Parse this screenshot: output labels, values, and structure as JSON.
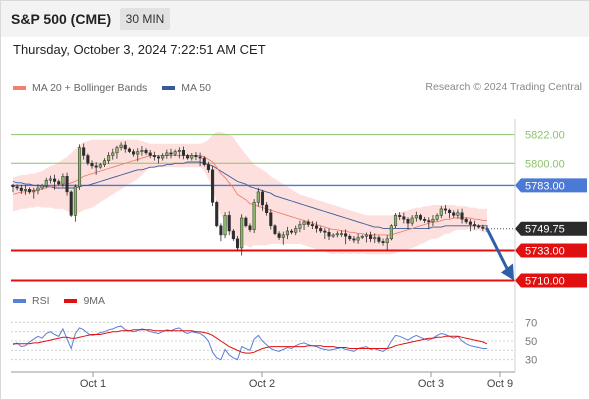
{
  "header": {
    "title": "S&P 500 (CME)",
    "timeframe": "30 MIN"
  },
  "timestamp": "Thursday, October 3, 2024 7:22:51 AM CET",
  "legend": {
    "ma20": "MA 20 + Bollinger Bands",
    "ma50": "MA 50",
    "rsi": "RSI",
    "rsi_ma": "9MA"
  },
  "credit": "Research © 2024 Trading Central",
  "colors": {
    "bollinger_fill": "#fcd5d2",
    "ma20": "#f08070",
    "ma50": "#3b5998",
    "candle": "#2d2d2d",
    "resistance": "#8dc26b",
    "pivot": "#4a79d6",
    "support": "#e01010",
    "rsi": "#5a7fd6",
    "rsi_ma": "#e01010",
    "arrow": "#2e5fa8"
  },
  "chart_data": [
    {
      "type": "candlestick",
      "title": "S&P 500 (CME)",
      "timeframe": "30 MIN",
      "x_ticks": [
        "Oct 1",
        "Oct 2",
        "Oct 3",
        "Oct 9"
      ],
      "ylim": [
        5705,
        5834
      ],
      "levels": [
        {
          "label": "5822.00",
          "value": 5822.0,
          "kind": "resistance"
        },
        {
          "label": "5800.00",
          "value": 5800.0,
          "kind": "resistance"
        },
        {
          "label": "5783.00",
          "value": 5783.0,
          "kind": "pivot"
        },
        {
          "label": "5749.75",
          "value": 5749.75,
          "kind": "last"
        },
        {
          "label": "5733.00",
          "value": 5733.0,
          "kind": "support"
        },
        {
          "label": "5710.00",
          "value": 5710.0,
          "kind": "support"
        }
      ],
      "close": [
        5782,
        5781,
        5779,
        5780,
        5778,
        5779,
        5781,
        5783,
        5787,
        5788,
        5786,
        5784,
        5790,
        5778,
        5760,
        5782,
        5812,
        5806,
        5800,
        5798,
        5797,
        5799,
        5802,
        5806,
        5808,
        5812,
        5814,
        5811,
        5809,
        5807,
        5809,
        5810,
        5808,
        5806,
        5805,
        5804,
        5806,
        5808,
        5807,
        5809,
        5810,
        5806,
        5804,
        5806,
        5805,
        5804,
        5799,
        5795,
        5770,
        5752,
        5745,
        5760,
        5748,
        5742,
        5735,
        5758,
        5752,
        5749,
        5770,
        5778,
        5768,
        5762,
        5752,
        5746,
        5743,
        5745,
        5748,
        5747,
        5750,
        5753,
        5755,
        5753,
        5752,
        5750,
        5748,
        5747,
        5744,
        5745,
        5746,
        5746,
        5744,
        5742,
        5741,
        5743,
        5744,
        5745,
        5742,
        5743,
        5740,
        5739,
        5742,
        5752,
        5760,
        5759,
        5757,
        5754,
        5758,
        5760,
        5757,
        5756,
        5755,
        5757,
        5760,
        5765,
        5764,
        5762,
        5760,
        5762,
        5757,
        5755,
        5753,
        5752,
        5751,
        5750,
        5749.75
      ],
      "ma20": [
        5776,
        5777,
        5778,
        5778,
        5779,
        5779,
        5780,
        5780,
        5781,
        5782,
        5782,
        5783,
        5784,
        5784,
        5785,
        5786,
        5788,
        5790,
        5791,
        5792,
        5793,
        5794,
        5795,
        5796,
        5797,
        5798,
        5799,
        5800,
        5801,
        5802,
        5803,
        5804,
        5805,
        5806,
        5806,
        5806,
        5806,
        5806,
        5806,
        5806,
        5806,
        5806,
        5806,
        5806,
        5806,
        5806,
        5805,
        5803,
        5801,
        5797,
        5792,
        5789,
        5785,
        5781,
        5776,
        5774,
        5772,
        5769,
        5768,
        5767,
        5766,
        5765,
        5764,
        5763,
        5762,
        5761,
        5760,
        5759,
        5758,
        5757,
        5756,
        5755,
        5754,
        5753,
        5752,
        5751,
        5750,
        5749,
        5749,
        5748,
        5748,
        5747,
        5747,
        5746,
        5746,
        5745,
        5745,
        5745,
        5745,
        5745,
        5745,
        5745,
        5746,
        5747,
        5748,
        5749,
        5750,
        5751,
        5752,
        5753,
        5754,
        5755,
        5755,
        5756,
        5757,
        5757,
        5758,
        5758,
        5758,
        5758,
        5758,
        5757,
        5757,
        5756,
        5756
      ],
      "bb_upper": [
        5789,
        5790,
        5791,
        5791,
        5792,
        5792,
        5793,
        5794,
        5796,
        5798,
        5799,
        5801,
        5803,
        5805,
        5808,
        5811,
        5814,
        5816,
        5817,
        5818,
        5818,
        5818,
        5818,
        5818,
        5818,
        5818,
        5818,
        5818,
        5818,
        5818,
        5818,
        5817,
        5816,
        5815,
        5815,
        5815,
        5815,
        5815,
        5815,
        5815,
        5815,
        5815,
        5815,
        5815,
        5815,
        5815,
        5816,
        5818,
        5822,
        5824,
        5824,
        5823,
        5822,
        5820,
        5815,
        5811,
        5807,
        5803,
        5799,
        5797,
        5795,
        5793,
        5790,
        5788,
        5786,
        5784,
        5782,
        5780,
        5778,
        5776,
        5775,
        5774,
        5773,
        5772,
        5771,
        5770,
        5769,
        5768,
        5767,
        5766,
        5765,
        5764,
        5763,
        5762,
        5761,
        5760,
        5760,
        5760,
        5760,
        5760,
        5760,
        5760,
        5761,
        5762,
        5763,
        5764,
        5765,
        5766,
        5766,
        5767,
        5767,
        5768,
        5768,
        5768,
        5768,
        5768,
        5768,
        5767,
        5767,
        5767,
        5766,
        5766,
        5765,
        5765,
        5765
      ],
      "bb_lower": [
        5763,
        5764,
        5765,
        5765,
        5766,
        5766,
        5767,
        5766,
        5766,
        5766,
        5765,
        5765,
        5765,
        5763,
        5762,
        5761,
        5762,
        5764,
        5765,
        5766,
        5768,
        5770,
        5772,
        5774,
        5776,
        5778,
        5780,
        5782,
        5784,
        5786,
        5788,
        5791,
        5794,
        5797,
        5797,
        5797,
        5797,
        5797,
        5797,
        5797,
        5797,
        5797,
        5797,
        5797,
        5797,
        5797,
        5794,
        5788,
        5780,
        5770,
        5760,
        5755,
        5748,
        5742,
        5737,
        5737,
        5737,
        5735,
        5737,
        5737,
        5737,
        5737,
        5738,
        5738,
        5738,
        5738,
        5738,
        5738,
        5738,
        5738,
        5737,
        5736,
        5735,
        5734,
        5733,
        5732,
        5731,
        5730,
        5731,
        5730,
        5731,
        5730,
        5731,
        5730,
        5731,
        5730,
        5730,
        5730,
        5730,
        5730,
        5730,
        5730,
        5731,
        5732,
        5733,
        5734,
        5735,
        5736,
        5738,
        5739,
        5741,
        5742,
        5742,
        5744,
        5746,
        5746,
        5748,
        5749,
        5749,
        5749,
        5750,
        5748,
        5749,
        5747,
        5747
      ],
      "ma50": [
        5786,
        5785,
        5785,
        5784,
        5784,
        5783,
        5783,
        5782,
        5782,
        5782,
        5781,
        5781,
        5781,
        5781,
        5781,
        5781,
        5782,
        5783,
        5783,
        5784,
        5785,
        5786,
        5787,
        5788,
        5789,
        5790,
        5791,
        5792,
        5793,
        5794,
        5795,
        5795,
        5796,
        5797,
        5797,
        5798,
        5798,
        5799,
        5799,
        5800,
        5800,
        5800,
        5801,
        5801,
        5801,
        5801,
        5800,
        5799,
        5798,
        5796,
        5794,
        5792,
        5790,
        5788,
        5786,
        5785,
        5784,
        5782,
        5781,
        5780,
        5779,
        5778,
        5777,
        5775,
        5774,
        5773,
        5772,
        5771,
        5770,
        5769,
        5768,
        5767,
        5766,
        5765,
        5764,
        5763,
        5762,
        5761,
        5760,
        5759,
        5758,
        5757,
        5756,
        5755,
        5754,
        5753,
        5752,
        5751,
        5751,
        5750,
        5750,
        5750,
        5750,
        5750,
        5750,
        5750,
        5750,
        5750,
        5750,
        5750,
        5750,
        5751,
        5751,
        5751,
        5752,
        5752,
        5752,
        5752,
        5752,
        5752,
        5752,
        5752,
        5752,
        5752,
        5752
      ],
      "projection": {
        "from": 5749.75,
        "to": 5710.0
      }
    },
    {
      "type": "line",
      "title": "RSI",
      "series": [
        {
          "name": "RSI",
          "values": [
            46,
            48,
            44,
            45,
            49,
            52,
            55,
            53,
            58,
            60,
            57,
            55,
            63,
            52,
            42,
            58,
            64,
            62,
            58,
            56,
            57,
            59,
            60,
            62,
            63,
            65,
            66,
            62,
            61,
            60,
            61,
            63,
            62,
            60,
            59,
            58,
            60,
            62,
            61,
            63,
            64,
            60,
            58,
            60,
            59,
            58,
            55,
            50,
            38,
            32,
            30,
            41,
            35,
            32,
            30,
            44,
            42,
            40,
            52,
            56,
            50,
            46,
            42,
            40,
            39,
            41,
            43,
            42,
            45,
            47,
            48,
            46,
            45,
            44,
            42,
            41,
            40,
            41,
            42,
            43,
            41,
            40,
            39,
            42,
            43,
            44,
            41,
            42,
            40,
            39,
            42,
            50,
            56,
            55,
            53,
            51,
            54,
            56,
            54,
            52,
            51,
            53,
            56,
            58,
            57,
            55,
            53,
            55,
            50,
            47,
            45,
            44,
            43,
            42,
            42
          ]
        },
        {
          "name": "9MA",
          "values": [
            47,
            47,
            47,
            47,
            47,
            48,
            48,
            49,
            50,
            51,
            52,
            53,
            54,
            54,
            53,
            53,
            54,
            55,
            56,
            57,
            57,
            57,
            58,
            59,
            60,
            60,
            61,
            61,
            61,
            62,
            62,
            62,
            62,
            62,
            61,
            61,
            61,
            61,
            61,
            61,
            61,
            61,
            61,
            61,
            60,
            60,
            59,
            58,
            56,
            53,
            50,
            47,
            44,
            42,
            40,
            38,
            37,
            37,
            38,
            40,
            42,
            43,
            44,
            44,
            44,
            44,
            44,
            44,
            44,
            44,
            44,
            45,
            45,
            45,
            45,
            44,
            44,
            44,
            43,
            43,
            43,
            42,
            42,
            42,
            42,
            42,
            42,
            42,
            42,
            42,
            42,
            43,
            45,
            46,
            47,
            48,
            49,
            50,
            51,
            52,
            53,
            53,
            54,
            54,
            55,
            55,
            55,
            55,
            54,
            53,
            52,
            51,
            50,
            49,
            47
          ]
        }
      ],
      "y_ticks": [
        70,
        50,
        30
      ],
      "ylim": [
        20,
        80
      ],
      "guide_lines": [
        70,
        60,
        50,
        40,
        30
      ]
    }
  ]
}
